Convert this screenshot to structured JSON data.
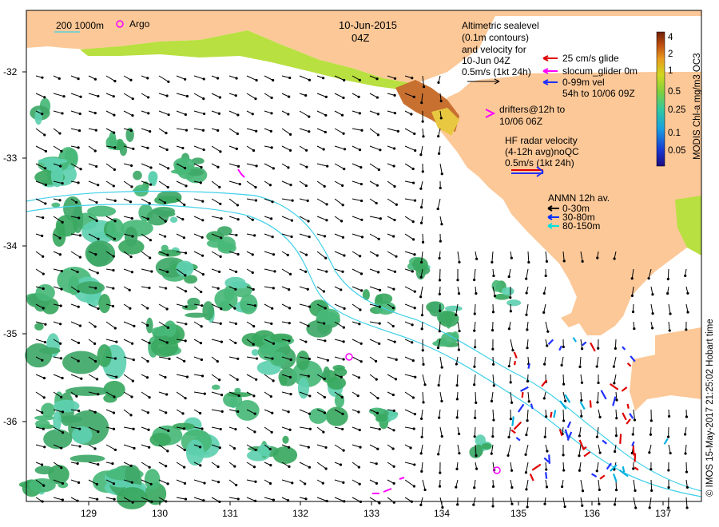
{
  "header": {
    "date": "10-Jun-2015",
    "time": "04Z"
  },
  "legend_topleft": {
    "isobath_label": "200  1000m",
    "argo_label": "Argo"
  },
  "sealevel_legend": {
    "lines": [
      "Altimetric sealevel",
      "(0.1m contours)",
      "and velocity for",
      "10-Jun 04Z",
      "0.5m/s (1kt 24h)"
    ]
  },
  "glider_legend": {
    "items": [
      {
        "label": "25 cm/s glide",
        "color": "#e00000"
      },
      {
        "label": "slocum_glider 0m",
        "color": "#ff00ff"
      },
      {
        "label": "0-99m vel",
        "color": "#2030ff"
      }
    ],
    "note": "54h to 10/06 09Z"
  },
  "drifter_legend": {
    "lines": [
      "drifters@12h to",
      "10/06 06Z"
    ]
  },
  "hf_radar_legend": {
    "lines": [
      "HF radar velocity",
      "(4-12h avg)noQC",
      "0.5m/s (1kt 24h)"
    ]
  },
  "anmn_legend": {
    "title": "ANMN 12h av.",
    "items": [
      {
        "label": "0-30m",
        "color": "#000000"
      },
      {
        "label": "30-80m",
        "color": "#0030ff"
      },
      {
        "label": "80-150m",
        "color": "#00e0e0"
      }
    ]
  },
  "colorbar": {
    "title": "MODIS Chl-a mg/m3 OC3",
    "ticks": [
      "4",
      "2",
      "1",
      "0.5",
      "0.25",
      "0.1",
      "0.05"
    ]
  },
  "axes": {
    "x_ticks": [
      "129",
      "130",
      "131",
      "132",
      "133",
      "134",
      "135",
      "136",
      "137"
    ],
    "y_ticks": [
      "-32",
      "-33",
      "-34",
      "-35",
      "-36"
    ]
  },
  "credit": "© IMOS 15-May-2017 21:25:02 Hobart time",
  "colors": {
    "land": "#fcc898",
    "ocean": "#ffffff",
    "chl_green": "#3aa860",
    "chl_cyan": "#5ed0b0",
    "isobath": "#40d0e8",
    "vector": "#000000"
  }
}
